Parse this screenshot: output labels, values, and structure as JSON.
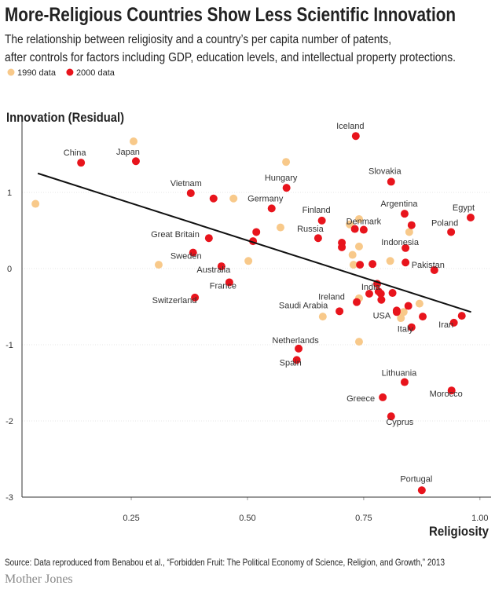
{
  "chart_data": {
    "type": "scatter",
    "title": "More-Religious Countries Show Less Scientific Innovation",
    "subtitle": [
      "The relationship between religiosity and a country’s per capita number of patents,",
      "after controls for factors including GDP, education levels, and intellectual property protections."
    ],
    "x_label": "Religiosity",
    "y_label": "Innovation (Residual)",
    "source": "Source: Data reproduced from Benabou et al., “Forbidden Fruit: The Political Economy of Science, Religion, and Growth,” 2013",
    "brand": "Mother Jones",
    "xlim": [
      0.015,
      1.024
    ],
    "ylim": [
      -3,
      2
    ],
    "xticks": [
      0.25,
      {
        "value": 0.5,
        "label": "0.50"
      },
      0.75,
      {
        "value": 1.0,
        "label": "1.00"
      }
    ],
    "yticks": [
      -3,
      -2,
      -1,
      0,
      1
    ],
    "grid": true,
    "legend": "top-left",
    "series": [
      {
        "name": "1990 data",
        "color": "#f8c98a",
        "x": [
          0.044,
          0.255,
          0.583,
          0.47,
          0.571,
          0.502,
          0.309,
          0.74,
          0.72,
          0.74,
          0.726,
          0.728,
          0.807,
          0.848,
          0.74,
          0.662,
          0.87,
          0.836,
          0.83,
          0.74
        ],
        "y": [
          0.85,
          1.67,
          1.4,
          0.92,
          0.54,
          0.1,
          0.05,
          0.65,
          0.58,
          0.29,
          0.18,
          0.05,
          0.1,
          0.48,
          -0.39,
          -0.63,
          -0.46,
          -0.57,
          -0.65,
          -0.96
        ]
      },
      {
        "name": "2000 data",
        "color": "#e8141c",
        "x": [
          0.142,
          0.26,
          0.378,
          0.584,
          0.733,
          0.809,
          0.552,
          0.66,
          0.838,
          0.98,
          0.938,
          0.75,
          0.652,
          0.417,
          0.84,
          0.383,
          0.444,
          0.902,
          0.461,
          0.782,
          0.387,
          0.735,
          0.698,
          0.821,
          0.944,
          0.853,
          0.61,
          0.606,
          0.838,
          0.939,
          0.791,
          0.809,
          0.875,
          0.427,
          0.519,
          0.512,
          0.703,
          0.703,
          0.731,
          0.742,
          0.769,
          0.84,
          0.853,
          0.762,
          0.787,
          0.788,
          0.812,
          0.779,
          0.846,
          0.821,
          0.877,
          0.961
        ],
        "y": [
          1.39,
          1.41,
          0.99,
          1.06,
          1.74,
          1.14,
          0.79,
          0.63,
          0.72,
          0.67,
          0.48,
          0.51,
          0.4,
          0.4,
          0.27,
          0.21,
          0.03,
          -0.02,
          -0.18,
          -0.3,
          -0.38,
          -0.44,
          -0.56,
          -0.55,
          -0.71,
          -0.77,
          -1.05,
          -1.2,
          -1.49,
          -1.6,
          -1.69,
          -1.94,
          -2.91,
          0.92,
          0.48,
          0.36,
          0.34,
          0.28,
          0.52,
          0.05,
          0.06,
          0.08,
          0.57,
          -0.33,
          -0.33,
          -0.41,
          -0.32,
          -0.2,
          -0.49,
          -0.57,
          -0.63,
          -0.62
        ],
        "labels": [
          "China",
          "Japan",
          "Vietnam",
          "Hungary",
          "Iceland",
          "Slovakia",
          "Germany",
          "Finland",
          "Argentina",
          "Egypt",
          "Poland",
          "Denmark",
          "Russia",
          "Great Britain",
          "Indonesia",
          "Sweden",
          "Australia",
          "Pakistan",
          "France",
          "India",
          "Switzerland",
          "Ireland",
          "Saudi Arabia",
          "USA",
          "Iran",
          "Italy",
          "Netherlands",
          "Spain",
          "Lithuania",
          "Morocco",
          "Greece",
          "Cyprus",
          "Portugal",
          null,
          null,
          null,
          null,
          null,
          null,
          null,
          null,
          null,
          null,
          null,
          null,
          null,
          null,
          null,
          null,
          null,
          null,
          null
        ]
      }
    ],
    "trend_line": {
      "x": [
        0.049,
        0.981
      ],
      "y": [
        1.25,
        -0.57
      ]
    }
  }
}
